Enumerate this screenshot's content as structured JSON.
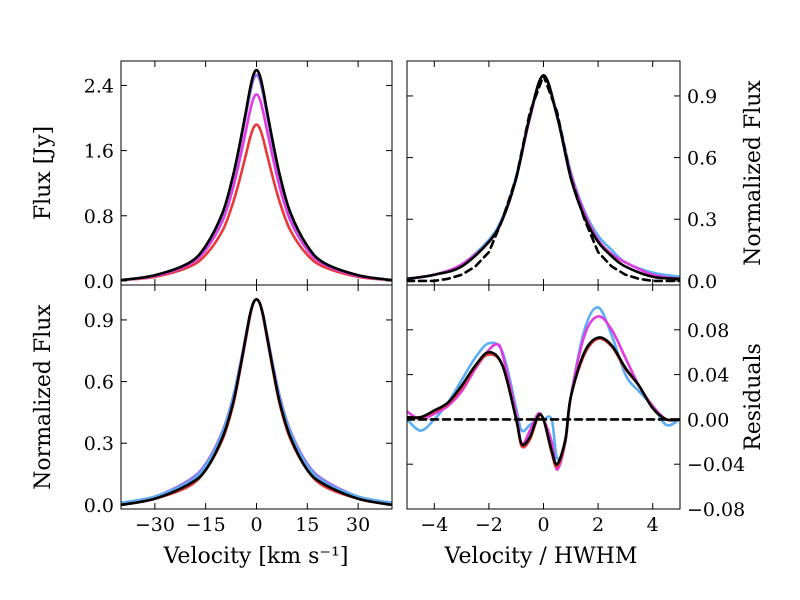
{
  "figure": {
    "background": "#ffffff"
  },
  "series_colors": {
    "red": "#e8383a",
    "magenta": "#e33ae0",
    "purple": "#9b6cf0",
    "lightblue": "#5aaef6",
    "black": "#000000"
  },
  "chart_data": [
    {
      "panel": "top-left",
      "type": "line",
      "xlabel": "",
      "ylabel": "Flux [Jy]",
      "ylabel_side": "left",
      "xlim": [
        -40,
        40
      ],
      "ylim": [
        -0.05,
        2.7
      ],
      "yticks": [
        0.0,
        0.8,
        1.6,
        2.4
      ],
      "ytick_labels": [
        "0.0",
        "0.8",
        "1.6",
        "2.4"
      ],
      "xticks": [
        -30,
        -15,
        0,
        15,
        30
      ],
      "xtick_labels": [],
      "series": [
        {
          "name": "red",
          "color": "#e8383a",
          "x": [
            -40,
            -30,
            -20,
            -15,
            -10,
            -7,
            -5,
            -3,
            -2,
            -1,
            0,
            1,
            2,
            3,
            5,
            7,
            10,
            15,
            20,
            30,
            40
          ],
          "y": [
            0.01,
            0.05,
            0.17,
            0.32,
            0.62,
            0.95,
            1.24,
            1.57,
            1.74,
            1.87,
            1.92,
            1.87,
            1.74,
            1.57,
            1.24,
            0.95,
            0.62,
            0.32,
            0.17,
            0.05,
            0.01
          ]
        },
        {
          "name": "magenta",
          "color": "#e33ae0",
          "x": [
            -40,
            -30,
            -20,
            -15,
            -10,
            -7,
            -5,
            -3,
            -2,
            -1,
            0,
            1,
            2,
            3,
            5,
            7,
            10,
            15,
            20,
            30,
            40
          ],
          "y": [
            0.01,
            0.06,
            0.2,
            0.38,
            0.74,
            1.13,
            1.48,
            1.87,
            2.07,
            2.23,
            2.29,
            2.23,
            2.07,
            1.87,
            1.48,
            1.13,
            0.74,
            0.38,
            0.2,
            0.06,
            0.01
          ]
        },
        {
          "name": "purple",
          "color": "#9b6cf0",
          "x": [
            -40,
            -30,
            -20,
            -15,
            -10,
            -7,
            -5,
            -3,
            -2,
            -1,
            0,
            1,
            2,
            3,
            5,
            7,
            10,
            15,
            20,
            30,
            40
          ],
          "y": [
            0.01,
            0.07,
            0.22,
            0.42,
            0.81,
            1.25,
            1.63,
            2.06,
            2.28,
            2.46,
            2.53,
            2.46,
            2.28,
            2.06,
            1.63,
            1.25,
            0.81,
            0.42,
            0.22,
            0.07,
            0.01
          ]
        },
        {
          "name": "black",
          "color": "#000000",
          "x": [
            -40,
            -30,
            -20,
            -15,
            -10,
            -7,
            -5,
            -3,
            -2,
            -1,
            0,
            1,
            2,
            3,
            5,
            7,
            10,
            15,
            20,
            30,
            40
          ],
          "y": [
            0.01,
            0.07,
            0.22,
            0.43,
            0.84,
            1.28,
            1.67,
            2.11,
            2.34,
            2.52,
            2.59,
            2.52,
            2.34,
            2.11,
            1.67,
            1.28,
            0.84,
            0.43,
            0.22,
            0.07,
            0.01
          ]
        }
      ]
    },
    {
      "panel": "top-right",
      "type": "line",
      "xlabel": "",
      "ylabel": "Normalized Flux",
      "ylabel_side": "right",
      "xlim": [
        -5,
        5
      ],
      "ylim": [
        -0.02,
        1.07
      ],
      "yticks": [
        0.0,
        0.3,
        0.6,
        0.9
      ],
      "ytick_labels": [
        "0.0",
        "0.3",
        "0.6",
        "0.9"
      ],
      "xticks": [
        -4,
        -2,
        0,
        2,
        4
      ],
      "xtick_labels": [],
      "series": [
        {
          "name": "lightblue",
          "color": "#5aaef6",
          "x": [
            -5,
            -4,
            -3,
            -2,
            -1.5,
            -1,
            -0.5,
            0,
            0.5,
            1,
            1.5,
            2,
            2.5,
            3,
            4,
            5
          ],
          "y": [
            0.01,
            0.03,
            0.08,
            0.2,
            0.31,
            0.51,
            0.8,
            1.0,
            0.81,
            0.53,
            0.34,
            0.22,
            0.15,
            0.09,
            0.04,
            0.02
          ]
        },
        {
          "name": "magenta",
          "color": "#e33ae0",
          "x": [
            -5,
            -4,
            -3,
            -2,
            -1.5,
            -1,
            -0.5,
            0,
            0.5,
            1,
            1.5,
            2,
            2.5,
            3,
            4,
            5
          ],
          "y": [
            0.01,
            0.03,
            0.08,
            0.19,
            0.3,
            0.5,
            0.79,
            1.0,
            0.8,
            0.52,
            0.33,
            0.2,
            0.13,
            0.09,
            0.03,
            0.01
          ]
        },
        {
          "name": "black",
          "color": "#000000",
          "x": [
            -5,
            -4,
            -3,
            -2,
            -1.5,
            -1,
            -0.5,
            0,
            0.5,
            1,
            1.5,
            2,
            2.5,
            3,
            4,
            5
          ],
          "y": [
            0.01,
            0.03,
            0.07,
            0.19,
            0.3,
            0.5,
            0.8,
            1.0,
            0.8,
            0.5,
            0.31,
            0.19,
            0.12,
            0.07,
            0.02,
            0.01
          ]
        },
        {
          "name": "model",
          "color": "#000000",
          "dashed": true,
          "x": [
            -5,
            -4,
            -3.5,
            -3,
            -2.5,
            -2,
            -1.5,
            -1,
            -0.5,
            0,
            0.5,
            1,
            1.5,
            2,
            2.5,
            3,
            3.5,
            4,
            5
          ],
          "y": [
            0.0,
            0.0,
            0.01,
            0.03,
            0.07,
            0.14,
            0.3,
            0.5,
            0.82,
            1.0,
            0.82,
            0.5,
            0.3,
            0.14,
            0.07,
            0.03,
            0.01,
            0.0,
            0.0
          ]
        }
      ]
    },
    {
      "panel": "bottom-left",
      "type": "line",
      "xlabel": "Velocity [km s⁻¹]",
      "ylabel": "Normalized Flux",
      "ylabel_side": "left",
      "xlim": [
        -40,
        40
      ],
      "ylim": [
        -0.02,
        1.07
      ],
      "yticks": [
        0.0,
        0.3,
        0.6,
        0.9
      ],
      "ytick_labels": [
        "0.0",
        "0.3",
        "0.6",
        "0.9"
      ],
      "xticks": [
        -30,
        -15,
        0,
        15,
        30
      ],
      "xtick_labels": [
        "−30",
        "−15",
        "0",
        "15",
        "30"
      ],
      "series": [
        {
          "name": "purple",
          "color": "#9b6cf0",
          "x": [
            -40,
            -30,
            -20,
            -15,
            -10,
            -7,
            -5,
            -3,
            -2,
            -1,
            0,
            1,
            2,
            3,
            5,
            7,
            10,
            15,
            20,
            30,
            40
          ],
          "y": [
            0.01,
            0.04,
            0.12,
            0.2,
            0.36,
            0.52,
            0.67,
            0.84,
            0.92,
            0.98,
            1.0,
            0.98,
            0.92,
            0.84,
            0.67,
            0.52,
            0.36,
            0.2,
            0.12,
            0.04,
            0.01
          ]
        },
        {
          "name": "lightblue",
          "color": "#5aaef6",
          "x": [
            -40,
            -30,
            -20,
            -15,
            -10,
            -7,
            -5,
            -3,
            -2,
            -1,
            0,
            1,
            2,
            3,
            5,
            7,
            10,
            15,
            20,
            30,
            40
          ],
          "y": [
            0.01,
            0.04,
            0.11,
            0.19,
            0.35,
            0.51,
            0.66,
            0.83,
            0.92,
            0.98,
            1.0,
            0.98,
            0.92,
            0.83,
            0.66,
            0.51,
            0.35,
            0.19,
            0.11,
            0.04,
            0.01
          ]
        },
        {
          "name": "red",
          "color": "#e8383a",
          "x": [
            -40,
            -30,
            -20,
            -15,
            -10,
            -7,
            -5,
            -3,
            -2,
            -1,
            0,
            1,
            2,
            3,
            5,
            7,
            10,
            15,
            20,
            30,
            40
          ],
          "y": [
            0.0,
            0.03,
            0.09,
            0.17,
            0.32,
            0.48,
            0.64,
            0.82,
            0.91,
            0.98,
            1.0,
            0.98,
            0.91,
            0.82,
            0.64,
            0.48,
            0.32,
            0.17,
            0.09,
            0.03,
            0.0
          ]
        },
        {
          "name": "black",
          "color": "#000000",
          "x": [
            -40,
            -30,
            -20,
            -15,
            -10,
            -7,
            -5,
            -3,
            -2,
            -1,
            0,
            1,
            2,
            3,
            5,
            7,
            10,
            15,
            20,
            30,
            40
          ],
          "y": [
            0.0,
            0.03,
            0.1,
            0.17,
            0.33,
            0.49,
            0.65,
            0.83,
            0.92,
            0.98,
            1.0,
            0.98,
            0.92,
            0.83,
            0.65,
            0.49,
            0.33,
            0.17,
            0.1,
            0.03,
            0.0
          ]
        }
      ]
    },
    {
      "panel": "bottom-right",
      "type": "line",
      "xlabel": "Velocity / HWHM",
      "ylabel": "Residuals",
      "ylabel_side": "right",
      "xlim": [
        -5,
        5
      ],
      "ylim": [
        -0.08,
        0.12
      ],
      "yticks": [
        -0.08,
        -0.04,
        0.0,
        0.04,
        0.08
      ],
      "ytick_labels": [
        "−0.08",
        "−0.04",
        "0.00",
        "0.04",
        "0.08"
      ],
      "xticks": [
        -4,
        -2,
        0,
        2,
        4
      ],
      "xtick_labels": [
        "−4",
        "−2",
        "0",
        "2",
        "4"
      ],
      "series": [
        {
          "name": "lightblue",
          "color": "#5aaef6",
          "x": [
            -5,
            -4.5,
            -4,
            -3.5,
            -3,
            -2.5,
            -2,
            -1.5,
            -1,
            -0.8,
            -0.5,
            -0.2,
            0,
            0.3,
            0.5,
            0.8,
            1,
            1.5,
            2,
            2.5,
            3,
            3.5,
            4,
            4.5,
            5
          ],
          "y": [
            0.0,
            -0.01,
            0.0,
            0.015,
            0.035,
            0.055,
            0.068,
            0.06,
            0.01,
            -0.01,
            -0.005,
            0.0,
            0.0,
            0.0,
            -0.035,
            -0.02,
            0.02,
            0.08,
            0.1,
            0.075,
            0.04,
            0.025,
            0.012,
            -0.005,
            0.0
          ]
        },
        {
          "name": "magenta",
          "color": "#e33ae0",
          "x": [
            -5,
            -4.5,
            -4,
            -3.5,
            -3,
            -2.5,
            -2,
            -1.7,
            -1.5,
            -1,
            -0.8,
            -0.5,
            -0.2,
            0,
            0.3,
            0.5,
            0.8,
            1,
            1.5,
            2,
            2.5,
            3,
            3.5,
            4,
            4.5,
            5
          ],
          "y": [
            0.007,
            0.0,
            0.005,
            0.012,
            0.025,
            0.045,
            0.062,
            0.067,
            0.058,
            0.005,
            -0.022,
            -0.01,
            0.005,
            0.0,
            -0.02,
            -0.045,
            -0.02,
            0.02,
            0.075,
            0.092,
            0.08,
            0.055,
            0.03,
            0.012,
            0.0,
            0.0
          ]
        },
        {
          "name": "red",
          "color": "#e8383a",
          "x": [
            -5,
            -4.5,
            -4,
            -3.5,
            -3,
            -2.5,
            -2,
            -1.5,
            -1,
            -0.8,
            -0.5,
            -0.2,
            0,
            0.3,
            0.5,
            0.8,
            1,
            1.5,
            2,
            2.5,
            3,
            3.5,
            4,
            4.5,
            5
          ],
          "y": [
            0.002,
            0.002,
            0.007,
            0.014,
            0.028,
            0.047,
            0.058,
            0.048,
            0.0,
            -0.024,
            -0.018,
            0.002,
            0.0,
            -0.03,
            -0.042,
            -0.02,
            0.02,
            0.058,
            0.072,
            0.065,
            0.045,
            0.03,
            0.01,
            0.0,
            0.0
          ]
        },
        {
          "name": "black",
          "color": "#000000",
          "x": [
            -5,
            -4.5,
            -4,
            -3.5,
            -3,
            -2.5,
            -2,
            -1.5,
            -1,
            -0.8,
            -0.5,
            -0.2,
            0,
            0.3,
            0.5,
            0.8,
            1,
            1.5,
            2,
            2.5,
            3,
            3.5,
            4,
            4.5,
            5
          ],
          "y": [
            0.002,
            0.002,
            0.008,
            0.015,
            0.03,
            0.048,
            0.06,
            0.048,
            0.0,
            -0.022,
            -0.016,
            0.003,
            0.0,
            -0.028,
            -0.04,
            -0.018,
            0.02,
            0.06,
            0.073,
            0.066,
            0.046,
            0.03,
            0.01,
            0.0,
            0.0
          ]
        },
        {
          "name": "zero-line",
          "color": "#000000",
          "dashed": true,
          "x": [
            -5,
            5
          ],
          "y": [
            0.0,
            0.0
          ]
        }
      ]
    }
  ]
}
